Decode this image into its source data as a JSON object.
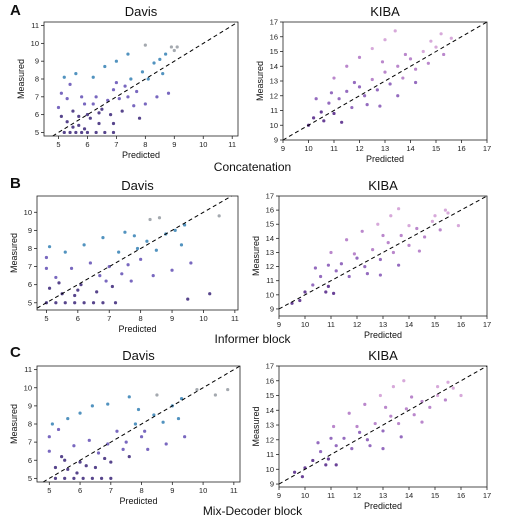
{
  "panels": [
    {
      "letter": "A",
      "caption": "Concatenation"
    },
    {
      "letter": "B",
      "caption": "Informer block"
    },
    {
      "letter": "C",
      "caption": "Mix-Decoder block"
    }
  ],
  "chart_data": [
    {
      "type": "scatter",
      "panel": "A",
      "title": "Davis",
      "xlabel": "Predicted",
      "ylabel": "Measured",
      "xlim": [
        4.5,
        11.2
      ],
      "ylim": [
        4.8,
        11.2
      ],
      "xticks": [
        5,
        6,
        7,
        8,
        9,
        10,
        11
      ],
      "yticks": [
        5,
        6,
        7,
        8,
        9,
        10,
        11
      ],
      "reference_line": "y = x (dashed)",
      "colors": [
        "#45317f",
        "#6a58b8",
        "#3f87b8",
        "#9aa0a6"
      ],
      "points": [
        [
          5.2,
          5.0
        ],
        [
          5.4,
          5.0
        ],
        [
          5.6,
          5.0
        ],
        [
          5.8,
          5.0
        ],
        [
          6.0,
          5.0
        ],
        [
          6.3,
          5.0
        ],
        [
          6.6,
          5.0
        ],
        [
          6.9,
          5.0
        ],
        [
          5.3,
          5.6
        ],
        [
          5.5,
          6.2
        ],
        [
          5.7,
          5.4
        ],
        [
          5.9,
          6.6
        ],
        [
          6.1,
          5.8
        ],
        [
          6.3,
          7.0
        ],
        [
          6.5,
          6.3
        ],
        [
          6.7,
          6.8
        ],
        [
          6.9,
          7.4
        ],
        [
          7.1,
          6.9
        ],
        [
          7.3,
          7.6
        ],
        [
          7.5,
          8.0
        ],
        [
          7.7,
          7.3
        ],
        [
          7.9,
          8.4
        ],
        [
          8.1,
          8.0
        ],
        [
          8.3,
          8.9
        ],
        [
          8.5,
          9.1
        ],
        [
          8.7,
          9.4
        ],
        [
          9.0,
          9.6
        ],
        [
          5.1,
          7.2
        ],
        [
          5.2,
          8.1
        ],
        [
          5.4,
          7.7
        ],
        [
          5.6,
          8.3
        ],
        [
          5.8,
          7.0
        ],
        [
          6.2,
          8.1
        ],
        [
          6.6,
          8.7
        ],
        [
          7.0,
          9.0
        ],
        [
          7.4,
          9.4
        ],
        [
          8.0,
          9.9
        ],
        [
          6.0,
          6.0
        ],
        [
          6.4,
          5.5
        ],
        [
          6.8,
          6.0
        ],
        [
          7.2,
          6.2
        ],
        [
          7.6,
          6.5
        ],
        [
          8.0,
          6.6
        ],
        [
          8.4,
          7.0
        ],
        [
          8.8,
          7.2
        ],
        [
          5.5,
          5.3
        ],
        [
          5.7,
          5.9
        ],
        [
          6.9,
          5.5
        ],
        [
          7.8,
          5.8
        ],
        [
          5.0,
          6.4
        ],
        [
          5.1,
          5.9
        ],
        [
          5.3,
          6.9
        ],
        [
          6.2,
          6.6
        ],
        [
          7.0,
          7.8
        ],
        [
          7.4,
          7.0
        ],
        [
          5.9,
          5.2
        ],
        [
          6.4,
          6.1
        ],
        [
          8.6,
          8.3
        ],
        [
          9.1,
          9.8
        ],
        [
          8.9,
          9.8
        ]
      ]
    },
    {
      "type": "scatter",
      "panel": "A",
      "title": "KIBA",
      "xlabel": "Predicted",
      "ylabel": "Measured",
      "xlim": [
        9,
        17
      ],
      "ylim": [
        9,
        17
      ],
      "xticks": [
        9,
        10,
        11,
        12,
        13,
        14,
        15,
        16,
        17
      ],
      "yticks": [
        9,
        10,
        11,
        12,
        13,
        14,
        15,
        16,
        17
      ],
      "reference_line": "y = x (dashed)",
      "colors": [
        "#5a2e8c",
        "#8a5cb8",
        "#b27ac6",
        "#d3a0d6"
      ],
      "points": [
        [
          10.2,
          10.5
        ],
        [
          10.5,
          10.9
        ],
        [
          10.8,
          11.5
        ],
        [
          11.0,
          10.8
        ],
        [
          11.2,
          11.8
        ],
        [
          11.5,
          12.3
        ],
        [
          11.7,
          11.2
        ],
        [
          12.0,
          12.6
        ],
        [
          12.2,
          12.0
        ],
        [
          12.5,
          13.1
        ],
        [
          12.7,
          12.4
        ],
        [
          13.0,
          13.6
        ],
        [
          13.2,
          12.8
        ],
        [
          13.5,
          14.0
        ],
        [
          13.7,
          13.2
        ],
        [
          14.0,
          14.5
        ],
        [
          14.2,
          13.8
        ],
        [
          14.5,
          15.0
        ],
        [
          14.7,
          14.2
        ],
        [
          15.0,
          15.3
        ],
        [
          15.3,
          14.8
        ],
        [
          15.6,
          15.9
        ],
        [
          11.0,
          13.2
        ],
        [
          11.5,
          14.0
        ],
        [
          12.0,
          14.6
        ],
        [
          12.5,
          15.2
        ],
        [
          13.0,
          15.8
        ],
        [
          13.4,
          16.4
        ],
        [
          12.8,
          11.3
        ],
        [
          13.5,
          12.0
        ],
        [
          14.2,
          12.9
        ],
        [
          11.3,
          10.2
        ],
        [
          10.3,
          11.8
        ],
        [
          10.0,
          10.0
        ],
        [
          10.6,
          10.3
        ],
        [
          12.3,
          11.4
        ],
        [
          13.8,
          14.8
        ],
        [
          14.8,
          15.7
        ],
        [
          15.2,
          16.2
        ],
        [
          11.8,
          12.9
        ],
        [
          12.9,
          14.3
        ],
        [
          10.9,
          12.2
        ]
      ]
    },
    {
      "type": "scatter",
      "panel": "B",
      "title": "Davis",
      "xlabel": "Predicted",
      "ylabel": "Measured",
      "xlim": [
        4.7,
        11.1
      ],
      "ylim": [
        4.6,
        10.9
      ],
      "xticks": [
        5,
        6,
        7,
        8,
        9,
        10,
        11
      ],
      "yticks": [
        5,
        6,
        7,
        8,
        9,
        10
      ],
      "reference_line": "y = x (dashed)",
      "colors": [
        "#45317f",
        "#6a58b8",
        "#3f87b8",
        "#9aa0a6"
      ],
      "points": [
        [
          5.0,
          5.0
        ],
        [
          5.3,
          5.0
        ],
        [
          5.6,
          5.0
        ],
        [
          5.9,
          5.0
        ],
        [
          6.2,
          5.0
        ],
        [
          6.5,
          5.0
        ],
        [
          6.8,
          5.0
        ],
        [
          7.2,
          5.0
        ],
        [
          5.1,
          5.8
        ],
        [
          5.3,
          6.4
        ],
        [
          5.5,
          5.5
        ],
        [
          5.8,
          6.9
        ],
        [
          6.1,
          6.0
        ],
        [
          6.4,
          7.2
        ],
        [
          6.7,
          6.5
        ],
        [
          7.0,
          7.0
        ],
        [
          7.3,
          7.8
        ],
        [
          7.6,
          7.1
        ],
        [
          7.9,
          8.0
        ],
        [
          8.2,
          8.4
        ],
        [
          8.5,
          7.9
        ],
        [
          8.8,
          8.8
        ],
        [
          9.1,
          9.0
        ],
        [
          9.4,
          9.3
        ],
        [
          5.0,
          7.5
        ],
        [
          5.1,
          8.1
        ],
        [
          5.0,
          6.9
        ],
        [
          5.6,
          7.8
        ],
        [
          6.2,
          8.2
        ],
        [
          6.8,
          8.6
        ],
        [
          7.5,
          8.9
        ],
        [
          8.3,
          9.6
        ],
        [
          6.6,
          5.6
        ],
        [
          7.1,
          5.9
        ],
        [
          7.7,
          6.2
        ],
        [
          8.4,
          6.5
        ],
        [
          9.0,
          6.8
        ],
        [
          9.6,
          7.2
        ],
        [
          5.9,
          5.4
        ],
        [
          6.9,
          6.2
        ],
        [
          7.4,
          6.6
        ],
        [
          8.0,
          7.4
        ],
        [
          10.5,
          9.8
        ],
        [
          10.2,
          5.5
        ],
        [
          9.5,
          5.2
        ],
        [
          5.4,
          6.1
        ],
        [
          6.0,
          5.7
        ],
        [
          7.8,
          8.7
        ],
        [
          9.3,
          8.2
        ],
        [
          8.6,
          9.7
        ]
      ]
    },
    {
      "type": "scatter",
      "panel": "B",
      "title": "KIBA",
      "xlabel": "Predicted",
      "ylabel": "Measured",
      "xlim": [
        9,
        17
      ],
      "ylim": [
        8.5,
        17
      ],
      "xticks": [
        9,
        10,
        11,
        12,
        13,
        14,
        15,
        16,
        17
      ],
      "yticks": [
        9,
        10,
        11,
        12,
        13,
        14,
        15,
        16,
        17
      ],
      "reference_line": "y = x (dashed)",
      "colors": [
        "#5a2e8c",
        "#8a5cb8",
        "#b27ac6",
        "#d3a0d6"
      ],
      "points": [
        [
          9.5,
          9.4
        ],
        [
          10.0,
          10.2
        ],
        [
          10.3,
          10.7
        ],
        [
          10.6,
          11.3
        ],
        [
          10.9,
          10.6
        ],
        [
          11.2,
          11.7
        ],
        [
          11.4,
          12.2
        ],
        [
          11.7,
          11.3
        ],
        [
          12.0,
          12.6
        ],
        [
          12.3,
          12.0
        ],
        [
          12.6,
          13.2
        ],
        [
          12.9,
          12.5
        ],
        [
          13.2,
          13.7
        ],
        [
          13.4,
          13.0
        ],
        [
          13.7,
          14.2
        ],
        [
          14.0,
          13.5
        ],
        [
          14.3,
          14.7
        ],
        [
          14.6,
          14.1
        ],
        [
          14.9,
          15.2
        ],
        [
          15.2,
          14.6
        ],
        [
          15.5,
          15.8
        ],
        [
          15.9,
          14.9
        ],
        [
          11.0,
          13.0
        ],
        [
          11.6,
          13.9
        ],
        [
          12.2,
          14.5
        ],
        [
          12.8,
          15.0
        ],
        [
          13.3,
          15.6
        ],
        [
          13.6,
          16.1
        ],
        [
          12.9,
          11.4
        ],
        [
          13.6,
          12.1
        ],
        [
          14.4,
          13.1
        ],
        [
          11.1,
          10.1
        ],
        [
          10.4,
          11.9
        ],
        [
          9.8,
          9.6
        ],
        [
          10.8,
          10.2
        ],
        [
          12.4,
          11.5
        ],
        [
          14.0,
          14.9
        ],
        [
          15.0,
          15.6
        ],
        [
          15.4,
          16.0
        ],
        [
          11.9,
          12.9
        ],
        [
          13.0,
          14.2
        ],
        [
          10.9,
          12.1
        ]
      ]
    },
    {
      "type": "scatter",
      "panel": "C",
      "title": "Davis",
      "xlabel": "Predicted",
      "ylabel": "Measured",
      "xlim": [
        4.6,
        11.2
      ],
      "ylim": [
        4.8,
        11.2
      ],
      "xticks": [
        5,
        6,
        7,
        8,
        9,
        10,
        11
      ],
      "yticks": [
        5,
        6,
        7,
        8,
        9,
        10,
        11
      ],
      "reference_line": "y = x (dashed)",
      "colors": [
        "#45317f",
        "#6a58b8",
        "#3f87b8",
        "#9aa0a6"
      ],
      "points": [
        [
          5.2,
          5.0
        ],
        [
          5.5,
          5.0
        ],
        [
          5.8,
          5.0
        ],
        [
          6.1,
          5.0
        ],
        [
          6.4,
          5.0
        ],
        [
          6.7,
          5.0
        ],
        [
          7.0,
          5.0
        ],
        [
          5.2,
          5.6
        ],
        [
          5.4,
          6.2
        ],
        [
          5.6,
          5.5
        ],
        [
          5.8,
          6.8
        ],
        [
          6.0,
          5.9
        ],
        [
          6.3,
          7.1
        ],
        [
          6.6,
          6.4
        ],
        [
          6.9,
          6.9
        ],
        [
          7.2,
          7.6
        ],
        [
          7.5,
          7.0
        ],
        [
          7.8,
          8.0
        ],
        [
          8.1,
          7.6
        ],
        [
          8.4,
          8.5
        ],
        [
          8.7,
          8.1
        ],
        [
          9.0,
          9.0
        ],
        [
          9.3,
          9.4
        ],
        [
          9.8,
          9.9
        ],
        [
          5.0,
          7.3
        ],
        [
          5.1,
          8.0
        ],
        [
          5.3,
          7.7
        ],
        [
          5.6,
          8.3
        ],
        [
          6.0,
          8.6
        ],
        [
          6.4,
          9.0
        ],
        [
          6.9,
          9.1
        ],
        [
          7.6,
          9.5
        ],
        [
          6.5,
          5.6
        ],
        [
          7.0,
          5.9
        ],
        [
          7.6,
          6.2
        ],
        [
          8.2,
          6.6
        ],
        [
          8.8,
          6.9
        ],
        [
          9.4,
          7.3
        ],
        [
          5.9,
          5.3
        ],
        [
          6.8,
          6.1
        ],
        [
          7.4,
          6.6
        ],
        [
          8.0,
          7.3
        ],
        [
          10.4,
          9.6
        ],
        [
          10.8,
          9.9
        ],
        [
          5.5,
          6.0
        ],
        [
          6.2,
          5.7
        ],
        [
          7.9,
          8.8
        ],
        [
          9.2,
          8.3
        ],
        [
          8.5,
          9.6
        ],
        [
          5.0,
          6.5
        ]
      ]
    },
    {
      "type": "scatter",
      "panel": "C",
      "title": "KIBA",
      "xlabel": "Predicted",
      "ylabel": "Measured",
      "xlim": [
        9,
        17
      ],
      "ylim": [
        8.8,
        17
      ],
      "xticks": [
        9,
        10,
        11,
        12,
        13,
        14,
        15,
        16,
        17
      ],
      "yticks": [
        9,
        10,
        11,
        12,
        13,
        14,
        15,
        16,
        17
      ],
      "reference_line": "y = x (dashed)",
      "colors": [
        "#5a2e8c",
        "#8a5cb8",
        "#b27ac6",
        "#d3a0d6"
      ],
      "points": [
        [
          9.6,
          9.8
        ],
        [
          10.0,
          10.1
        ],
        [
          10.3,
          10.6
        ],
        [
          10.6,
          11.2
        ],
        [
          10.9,
          10.7
        ],
        [
          11.2,
          11.6
        ],
        [
          11.5,
          12.1
        ],
        [
          11.8,
          11.4
        ],
        [
          12.1,
          12.5
        ],
        [
          12.4,
          12.0
        ],
        [
          12.7,
          13.1
        ],
        [
          13.0,
          12.6
        ],
        [
          13.3,
          13.6
        ],
        [
          13.6,
          13.1
        ],
        [
          13.9,
          14.1
        ],
        [
          14.2,
          13.7
        ],
        [
          14.5,
          14.6
        ],
        [
          14.8,
          14.2
        ],
        [
          15.1,
          15.0
        ],
        [
          15.4,
          14.7
        ],
        [
          15.7,
          15.5
        ],
        [
          16.0,
          15.0
        ],
        [
          11.1,
          12.9
        ],
        [
          11.7,
          13.8
        ],
        [
          12.3,
          14.4
        ],
        [
          12.9,
          15.0
        ],
        [
          13.4,
          15.6
        ],
        [
          13.8,
          16.0
        ],
        [
          13.0,
          11.4
        ],
        [
          13.7,
          12.2
        ],
        [
          14.5,
          13.2
        ],
        [
          11.2,
          10.3
        ],
        [
          10.5,
          11.8
        ],
        [
          9.9,
          9.5
        ],
        [
          10.8,
          10.3
        ],
        [
          12.5,
          11.6
        ],
        [
          14.1,
          14.9
        ],
        [
          15.1,
          15.6
        ],
        [
          15.5,
          15.9
        ],
        [
          12.0,
          12.9
        ],
        [
          13.1,
          14.2
        ],
        [
          11.0,
          12.1
        ]
      ]
    }
  ]
}
